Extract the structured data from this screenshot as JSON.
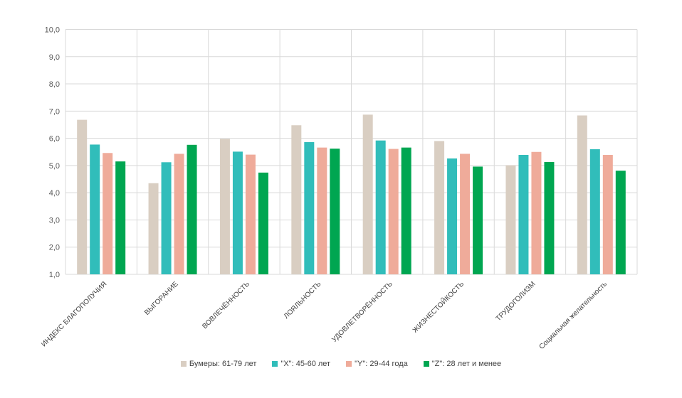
{
  "chart_data": {
    "type": "bar",
    "title": "",
    "xlabel": "",
    "ylabel": "",
    "ylim": [
      1.0,
      10.0
    ],
    "yticks": [
      "1,0",
      "2,0",
      "3,0",
      "4,0",
      "5,0",
      "6,0",
      "7,0",
      "8,0",
      "9,0",
      "10,0"
    ],
    "ytick_values": [
      1,
      2,
      3,
      4,
      5,
      6,
      7,
      8,
      9,
      10
    ],
    "grid": true,
    "legend_position": "bottom",
    "categories": [
      "ИНДЕКС БЛАГОПОЛУЧИЯ",
      "ВЫГОРАНИЕ",
      "ВОВЛЕЧЁННОСТЬ",
      "ЛОЯЛЬНОСТЬ",
      "УДОВЛЕТВОРЁННОСТЬ",
      "ЖИЗНЕСТОЙКОСТЬ",
      "ТРУДОГОЛИЗМ",
      "Социальная желательность"
    ],
    "series": [
      {
        "name": "Бумеры: 61-79 лет",
        "color": "#D9CEC2",
        "values": [
          6.68,
          4.35,
          5.98,
          6.48,
          6.87,
          5.9,
          5.01,
          6.84
        ]
      },
      {
        "name": "\"X\": 45-60 лет",
        "color": "#31BDBA",
        "values": [
          5.77,
          5.12,
          5.51,
          5.86,
          5.92,
          5.26,
          5.39,
          5.6
        ]
      },
      {
        "name": "\"Y\": 29-44 года",
        "color": "#EFAB9A",
        "values": [
          5.46,
          5.43,
          5.4,
          5.66,
          5.61,
          5.43,
          5.5,
          5.39
        ]
      },
      {
        "name": "\"Z\": 28 лет и менее",
        "color": "#00A651",
        "values": [
          5.15,
          5.76,
          4.74,
          5.62,
          5.66,
          4.96,
          5.13,
          4.81
        ]
      }
    ]
  }
}
